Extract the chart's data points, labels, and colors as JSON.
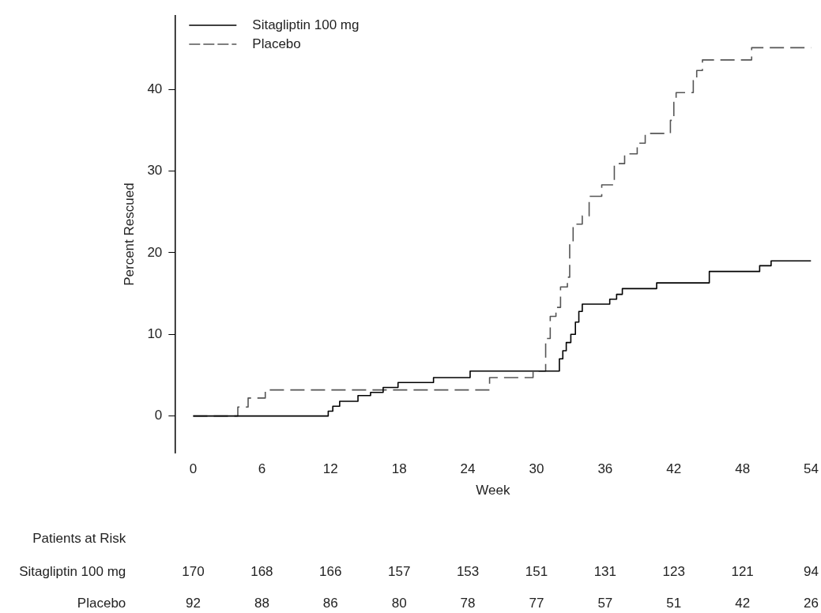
{
  "chart_data": {
    "type": "step",
    "xlabel": "Week",
    "ylabel": "Percent Rescued",
    "xlim": [
      -1.6,
      54
    ],
    "xticks": [
      0,
      6,
      12,
      18,
      24,
      30,
      36,
      42,
      48,
      54
    ],
    "ylim": [
      -4.5,
      49
    ],
    "yticks": [
      0,
      10,
      20,
      30,
      40
    ],
    "grid": false,
    "legend": "top left",
    "marker": "none",
    "series": [
      {
        "name": "Sitagliptin 100 mg",
        "color": "#000000",
        "line_style": "solid",
        "x": [
          0,
          11.8,
          12.2,
          12.8,
          14.4,
          15.5,
          16.6,
          17.9,
          21,
          24.2,
          31.8,
          32,
          32.3,
          32.6,
          33,
          33.4,
          33.7,
          34,
          36.4,
          37,
          37.5,
          40.5,
          45.1,
          49.5,
          50.5,
          54
        ],
        "values": [
          0,
          0.6,
          1.2,
          1.8,
          2.5,
          2.9,
          3.5,
          4.1,
          4.7,
          5.5,
          5.5,
          7,
          8,
          9,
          10,
          11.5,
          12.8,
          13.7,
          14.3,
          14.9,
          15.6,
          16.3,
          17.7,
          18.4,
          19,
          19
        ]
      },
      {
        "name": "Placebo",
        "color": "#555555",
        "line_style": "dashed",
        "x": [
          0,
          3.9,
          4.8,
          6.3,
          25.9,
          29.7,
          30.8,
          31.2,
          31.7,
          32.1,
          32.7,
          32.9,
          33.2,
          34,
          34.6,
          35.7,
          36.8,
          37.7,
          38.8,
          39.5,
          41.7,
          42,
          42.2,
          43.7,
          44,
          44.5,
          48.8,
          54
        ],
        "values": [
          0,
          1.1,
          2.2,
          3.2,
          4.7,
          5.5,
          9.5,
          12.2,
          13.3,
          15.8,
          17,
          21.1,
          23.5,
          24.5,
          26.9,
          28.3,
          30.9,
          32.1,
          33.4,
          34.6,
          36.2,
          38.4,
          39.6,
          41.1,
          42.3,
          43.6,
          45.1,
          45.1
        ]
      }
    ],
    "annotations": [
      "Patients at Risk",
      "Sitagliptin 100 mg",
      "170",
      "168",
      "166",
      "157",
      "153",
      "151",
      "131",
      "123",
      "121",
      "94",
      "Placebo",
      "92",
      "88",
      "86",
      "80",
      "78",
      "77",
      "57",
      "51",
      "42",
      "26"
    ]
  }
}
